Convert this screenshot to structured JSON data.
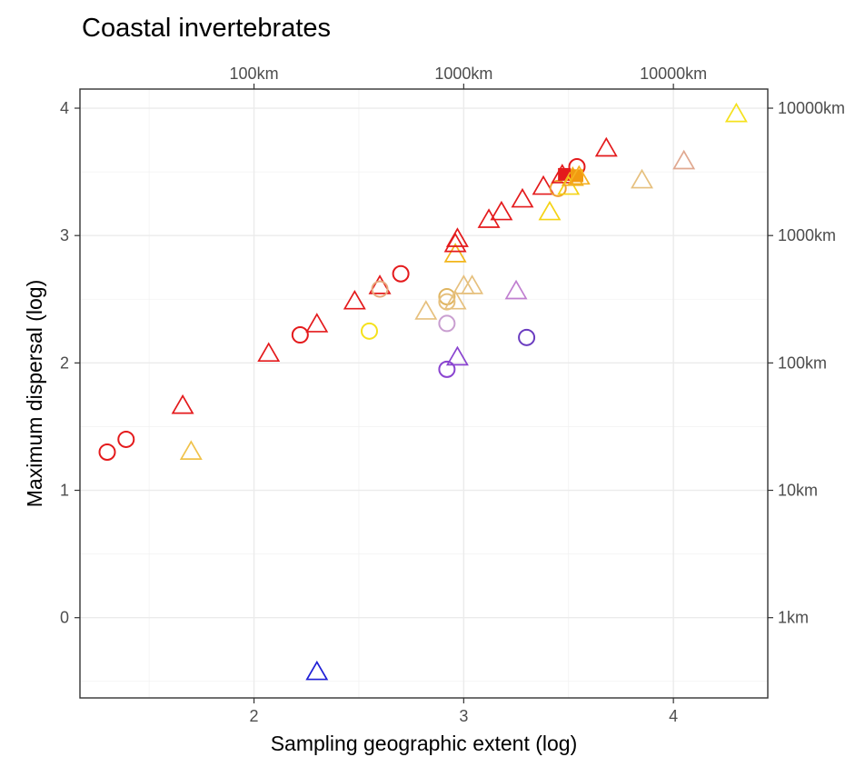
{
  "chart_data": {
    "type": "scatter",
    "title": "Coastal invertebrates",
    "xlabel": "Sampling   geographic   extent   (log)",
    "ylabel": "Maximum   dispersal   (log)",
    "xlim": [
      1.17,
      4.45
    ],
    "ylim": [
      -0.63,
      4.15
    ],
    "x_ticks": [
      2,
      3,
      4
    ],
    "x_tick_labels": [
      "2",
      "3",
      "4"
    ],
    "y_ticks": [
      0,
      1,
      2,
      3,
      4
    ],
    "y_tick_labels": [
      "0",
      "1",
      "2",
      "3",
      "4"
    ],
    "x_secondary_ticks": [
      2,
      3,
      4
    ],
    "x_secondary_labels": [
      "100km",
      "1000km",
      "10000km"
    ],
    "y_secondary_ticks": [
      0,
      1,
      2,
      3,
      4
    ],
    "y_secondary_labels": [
      "1km",
      "10km",
      "100km",
      "1000km",
      "10000km"
    ],
    "grid": true,
    "points": [
      {
        "x": 1.3,
        "y": 1.3,
        "shape": "circle",
        "color": "#e41a1c"
      },
      {
        "x": 1.39,
        "y": 1.4,
        "shape": "circle",
        "color": "#e41a1c"
      },
      {
        "x": 1.66,
        "y": 1.66,
        "shape": "triangle",
        "color": "#e41a1c"
      },
      {
        "x": 1.7,
        "y": 1.3,
        "shape": "triangle",
        "color": "#f0c24a"
      },
      {
        "x": 2.07,
        "y": 2.07,
        "shape": "triangle",
        "color": "#e41a1c"
      },
      {
        "x": 2.22,
        "y": 2.22,
        "shape": "circle",
        "color": "#e41a1c"
      },
      {
        "x": 2.3,
        "y": 2.3,
        "shape": "triangle",
        "color": "#e41a1c"
      },
      {
        "x": 2.3,
        "y": -0.43,
        "shape": "triangle",
        "color": "#1f1fd6"
      },
      {
        "x": 2.48,
        "y": 2.48,
        "shape": "triangle",
        "color": "#e41a1c"
      },
      {
        "x": 2.55,
        "y": 2.25,
        "shape": "circle",
        "color": "#f5e11c"
      },
      {
        "x": 2.6,
        "y": 2.6,
        "shape": "triangle",
        "color": "#e41a1c"
      },
      {
        "x": 2.6,
        "y": 2.58,
        "shape": "circle",
        "color": "#e8a87c"
      },
      {
        "x": 2.7,
        "y": 2.7,
        "shape": "circle",
        "color": "#e41a1c"
      },
      {
        "x": 2.82,
        "y": 2.4,
        "shape": "triangle",
        "color": "#e6c07e"
      },
      {
        "x": 2.92,
        "y": 2.31,
        "shape": "circle",
        "color": "#c99ed0"
      },
      {
        "x": 2.92,
        "y": 1.95,
        "shape": "circle",
        "color": "#8a44d0"
      },
      {
        "x": 2.92,
        "y": 2.52,
        "shape": "circle",
        "color": "#e0b560"
      },
      {
        "x": 2.92,
        "y": 2.48,
        "shape": "circle",
        "color": "#e6c07e"
      },
      {
        "x": 2.96,
        "y": 2.48,
        "shape": "triangle",
        "color": "#e6c07e"
      },
      {
        "x": 2.96,
        "y": 2.85,
        "shape": "triangle",
        "color": "#f2b51a"
      },
      {
        "x": 2.96,
        "y": 2.93,
        "shape": "triangle",
        "color": "#e41a1c"
      },
      {
        "x": 2.97,
        "y": 2.97,
        "shape": "triangle",
        "color": "#e41a1c"
      },
      {
        "x": 2.97,
        "y": 2.04,
        "shape": "triangle",
        "color": "#8a44d0"
      },
      {
        "x": 3.0,
        "y": 2.6,
        "shape": "triangle",
        "color": "#e6c07e"
      },
      {
        "x": 3.04,
        "y": 2.6,
        "shape": "triangle",
        "color": "#e6c07e"
      },
      {
        "x": 3.12,
        "y": 3.12,
        "shape": "triangle",
        "color": "#e41a1c"
      },
      {
        "x": 3.18,
        "y": 3.18,
        "shape": "triangle",
        "color": "#e41a1c"
      },
      {
        "x": 3.25,
        "y": 2.56,
        "shape": "triangle",
        "color": "#c07fd0"
      },
      {
        "x": 3.28,
        "y": 3.28,
        "shape": "triangle",
        "color": "#e41a1c"
      },
      {
        "x": 3.3,
        "y": 2.2,
        "shape": "circle",
        "color": "#6a3cc0"
      },
      {
        "x": 3.38,
        "y": 3.38,
        "shape": "triangle",
        "color": "#e41a1c"
      },
      {
        "x": 3.41,
        "y": 3.18,
        "shape": "triangle",
        "color": "#f5d314"
      },
      {
        "x": 3.45,
        "y": 3.37,
        "shape": "circle",
        "color": "#f0a030"
      },
      {
        "x": 3.47,
        "y": 3.47,
        "shape": "triangle",
        "color": "#e41a1c"
      },
      {
        "x": 3.48,
        "y": 3.48,
        "shape": "square_filled",
        "color": "#e41a1c"
      },
      {
        "x": 3.5,
        "y": 3.38,
        "shape": "triangle",
        "color": "#f5d314"
      },
      {
        "x": 3.52,
        "y": 3.45,
        "shape": "triangle",
        "color": "#f0b020"
      },
      {
        "x": 3.54,
        "y": 3.54,
        "shape": "circle",
        "color": "#e41a1c"
      },
      {
        "x": 3.54,
        "y": 3.47,
        "shape": "square_filled",
        "color": "#f29a10"
      },
      {
        "x": 3.55,
        "y": 3.46,
        "shape": "triangle",
        "color": "#f5b020"
      },
      {
        "x": 3.68,
        "y": 3.68,
        "shape": "triangle",
        "color": "#e41a1c"
      },
      {
        "x": 3.85,
        "y": 3.43,
        "shape": "triangle",
        "color": "#e6c07e"
      },
      {
        "x": 4.05,
        "y": 3.58,
        "shape": "triangle",
        "color": "#e0a890"
      },
      {
        "x": 4.3,
        "y": 3.95,
        "shape": "triangle",
        "color": "#f5e11c"
      }
    ]
  }
}
